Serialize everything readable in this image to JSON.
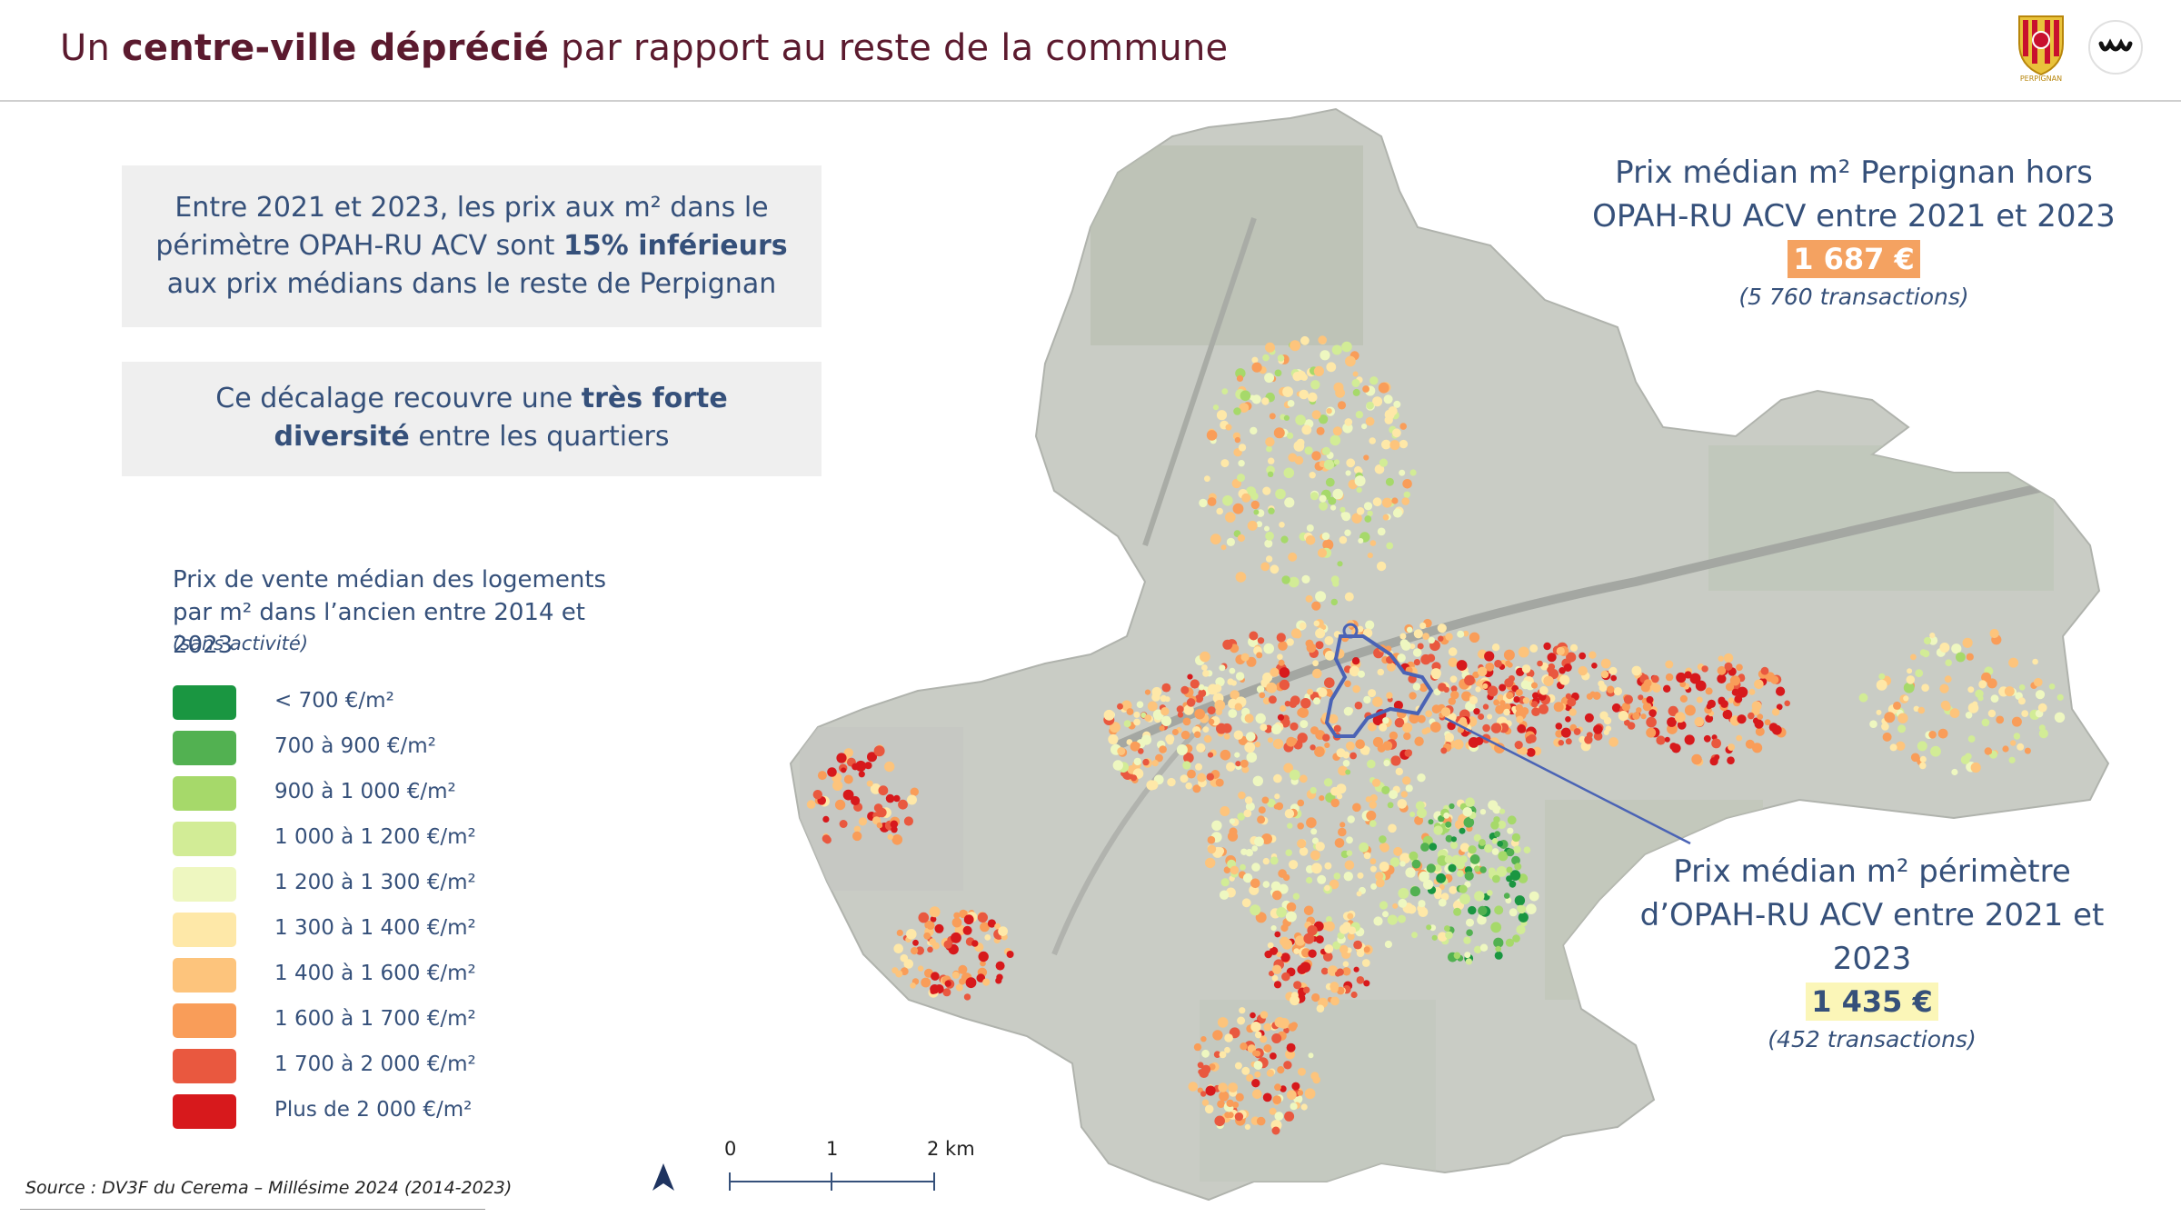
{
  "header": {
    "title_pre": "Un ",
    "title_bold": "centre-ville déprécié",
    "title_post": " par rapport au reste de la commune",
    "crest_label": "PERPIGNAN"
  },
  "box1": {
    "text_pre": "Entre 2021 et 2023, les prix aux m² dans le périmètre OPAH-RU ACV sont ",
    "text_bold": "15% inférieurs",
    "text_post": " aux prix médians dans le reste de Perpignan"
  },
  "box2": {
    "text_pre": "Ce décalage recouvre une ",
    "text_bold": "très forte diversité",
    "text_post": " entre les quartiers"
  },
  "legend": {
    "title": "Prix de vente médian des logements par m² dans l’ancien entre 2014 et 2023",
    "subtitle": "(sans activité)",
    "items": [
      {
        "label": "< 700 €/m²",
        "color": "#1a9641"
      },
      {
        "label": "700 à 900 €/m²",
        "color": "#52b151"
      },
      {
        "label": "900 à 1 000 €/m²",
        "color": "#a6d96a"
      },
      {
        "label": "1 000 à 1 200 €/m²",
        "color": "#d2ec96"
      },
      {
        "label": "1 200 à 1 300 €/m²",
        "color": "#eef7c0"
      },
      {
        "label": "1 300 à 1 400 €/m²",
        "color": "#fee8a8"
      },
      {
        "label": "1 400 à 1 600 €/m²",
        "color": "#fdc47c"
      },
      {
        "label": "1 600 à 1 700 €/m²",
        "color": "#f99d59"
      },
      {
        "label": "1 700 à 2 000 €/m²",
        "color": "#e9583f"
      },
      {
        "label": "Plus de 2 000 €/m²",
        "color": "#d7191c"
      }
    ]
  },
  "stat_outside": {
    "label": "Prix médian m² Perpignan hors OPAH-RU ACV entre 2021 et 2023",
    "price": "1 687 €",
    "transactions": "(5 760 transactions)"
  },
  "stat_inside": {
    "label": "Prix médian m² périmètre d’OPAH-RU ACV entre 2021 et 2023",
    "price": "1 435 €",
    "transactions": "(452 transactions)"
  },
  "scale": {
    "ticks": [
      "0",
      "1",
      "2 km"
    ]
  },
  "source": "Source : DV3F du Cerema – Millésime 2024 (2014-2023)",
  "icons": {
    "north": "north-arrow-icon",
    "crest": "perpignan-crest-icon",
    "partner": "partner-logo-icon"
  }
}
